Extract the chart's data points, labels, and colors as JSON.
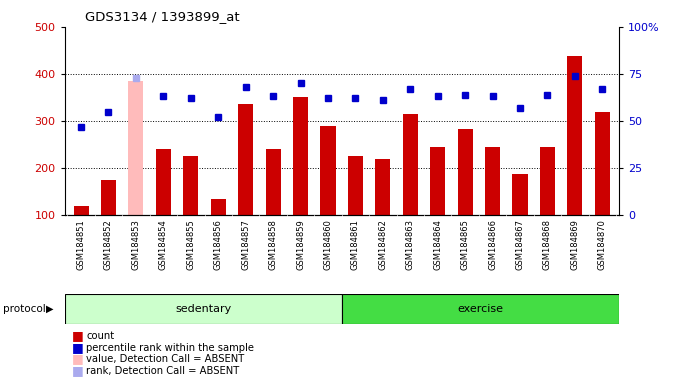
{
  "title": "GDS3134 / 1393899_at",
  "samples": [
    "GSM184851",
    "GSM184852",
    "GSM184853",
    "GSM184854",
    "GSM184855",
    "GSM184856",
    "GSM184857",
    "GSM184858",
    "GSM184859",
    "GSM184860",
    "GSM184861",
    "GSM184862",
    "GSM184863",
    "GSM184864",
    "GSM184865",
    "GSM184866",
    "GSM184867",
    "GSM184868",
    "GSM184869",
    "GSM184870"
  ],
  "counts": [
    120,
    175,
    385,
    240,
    225,
    135,
    335,
    240,
    350,
    290,
    225,
    220,
    315,
    245,
    283,
    245,
    188,
    245,
    438,
    320
  ],
  "absent_mask": [
    false,
    false,
    true,
    false,
    false,
    false,
    false,
    false,
    false,
    false,
    false,
    false,
    false,
    false,
    false,
    false,
    false,
    false,
    false,
    false
  ],
  "percentile_ranks": [
    47,
    55,
    73,
    63,
    62,
    52,
    68,
    63,
    70,
    62,
    62,
    61,
    67,
    63,
    64,
    63,
    57,
    64,
    74,
    67
  ],
  "sedentary_count": 10,
  "exercise_count": 10,
  "ylim_left": [
    100,
    500
  ],
  "ylim_right": [
    0,
    100
  ],
  "yticks_left": [
    100,
    200,
    300,
    400,
    500
  ],
  "yticks_right": [
    0,
    25,
    50,
    75,
    100
  ],
  "bar_color_normal": "#cc0000",
  "bar_color_absent": "#ffbbbb",
  "dot_color_normal": "#0000cc",
  "dot_color_absent": "#aaaaee",
  "sedentary_color": "#ccffcc",
  "exercise_color": "#44dd44",
  "protocol_label_sedentary": "sedentary",
  "protocol_label_exercise": "exercise",
  "protocol_label": "protocol",
  "bg_color": "#ffffff",
  "tick_label_color_left": "#cc0000",
  "tick_label_color_right": "#0000cc",
  "label_area_color": "#cccccc",
  "grid_dotted_color": "#555555"
}
